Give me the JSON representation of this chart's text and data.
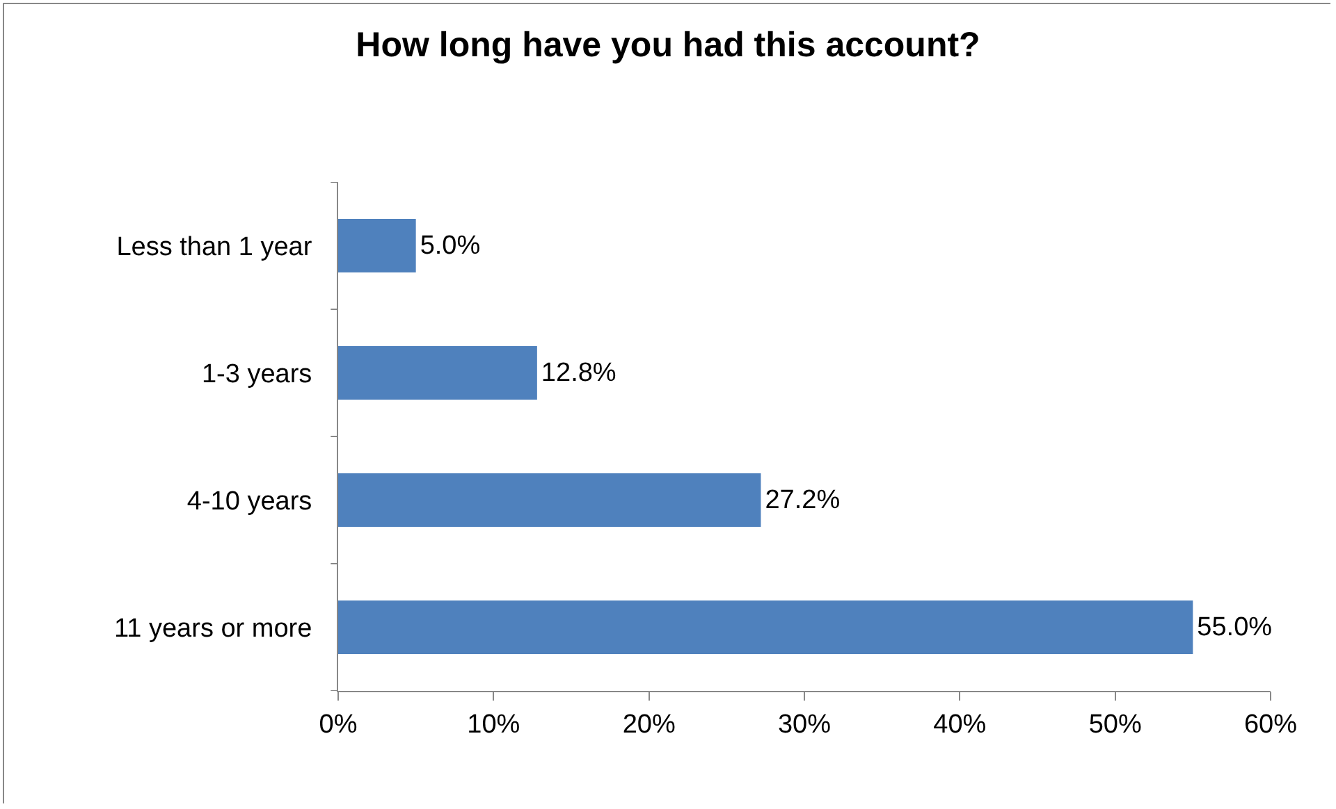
{
  "chart_data": {
    "type": "bar",
    "orientation": "horizontal",
    "title": "How long have you had this account?",
    "categories": [
      "Less than 1 year",
      "1-3 years",
      "4-10 years",
      "11 years or more"
    ],
    "values": [
      5.0,
      12.8,
      27.2,
      55.0
    ],
    "value_labels": [
      "5.0%",
      "12.8%",
      "27.2%",
      "55.0%"
    ],
    "color": "#4f81bd",
    "xlim": [
      0,
      60
    ],
    "xticks": [
      {
        "value": 0,
        "label": "0%"
      },
      {
        "value": 10,
        "label": "10%"
      },
      {
        "value": 20,
        "label": "20%"
      },
      {
        "value": 30,
        "label": "30%"
      },
      {
        "value": 40,
        "label": "40%"
      },
      {
        "value": 50,
        "label": "50%"
      },
      {
        "value": 60,
        "label": "60%"
      }
    ],
    "grid": false,
    "legend": false
  }
}
